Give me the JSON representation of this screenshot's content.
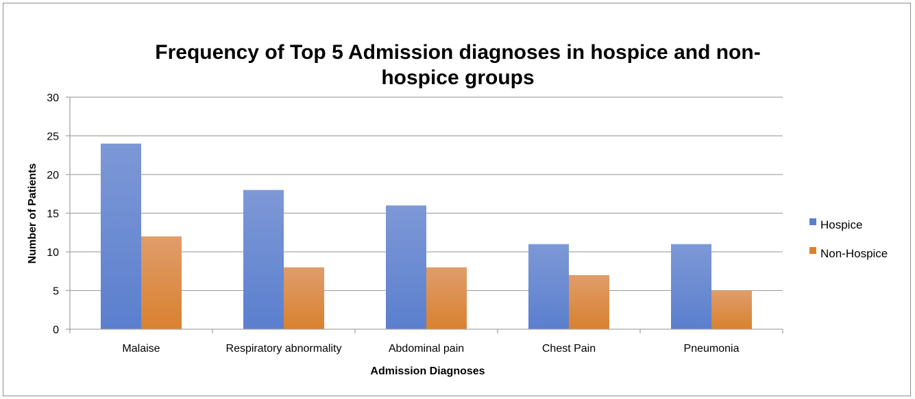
{
  "chart_data": {
    "type": "bar",
    "title_lines": [
      "Frequency of Top 5 Admission diagnoses in hospice and non-",
      "hospice groups"
    ],
    "xlabel": "Admission Diagnoses",
    "ylabel": "Number of Patients",
    "categories": [
      "Malaise",
      "Respiratory abnormality",
      "Abdominal pain",
      "Chest Pain",
      "Pneumonia"
    ],
    "series": [
      {
        "name": "Hospice",
        "color": "#5b7fce",
        "color_light": "#7d98d6",
        "values": [
          24,
          18,
          16,
          11,
          11
        ]
      },
      {
        "name": "Non-Hospice",
        "color": "#d9812f",
        "color_light": "#e09d6a",
        "values": [
          12,
          8,
          8,
          7,
          5
        ]
      }
    ],
    "ylim": [
      0,
      30
    ],
    "yticks": [
      0,
      5,
      10,
      15,
      20,
      25,
      30
    ],
    "grid": true,
    "legend_position": "right",
    "gridline_color": "#a6a6a6"
  }
}
